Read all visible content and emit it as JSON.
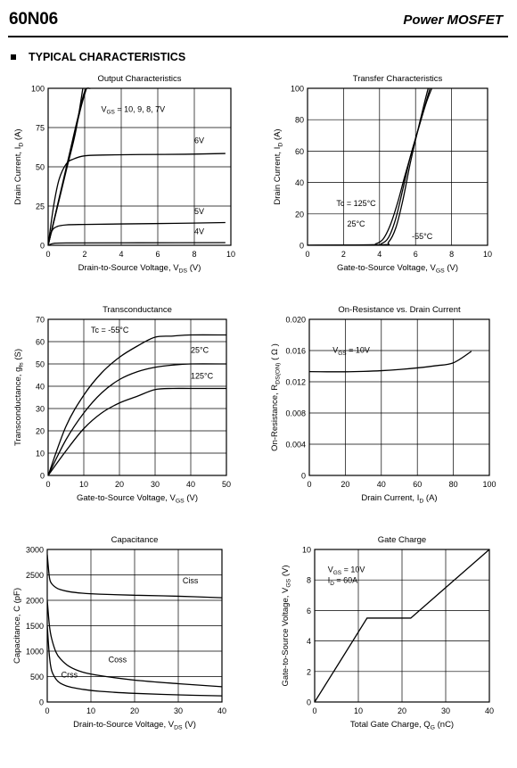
{
  "header": {
    "part_number": "60N06",
    "device_type": "Power MOSFET"
  },
  "section_title": "TYPICAL CHARACTERISTICS",
  "chart_data": [
    {
      "id": "output",
      "type": "line",
      "title": "Output Characteristics",
      "ylabel": "Drain Current, I_D (A)",
      "xlabel": "Drain-to-Source Voltage, V_DS (V)",
      "xlim": [
        0,
        10
      ],
      "ylim": [
        0,
        100
      ],
      "xticks": [
        0,
        2,
        4,
        6,
        8,
        10
      ],
      "yticks": [
        0,
        25,
        50,
        75,
        100
      ],
      "grid": true,
      "series": [
        {
          "name": "V_GS = 10, 9, 8, 7V (a)",
          "x": [
            0,
            0.4,
            0.8,
            1.2,
            1.6,
            2.0,
            2.3
          ],
          "y": [
            0,
            20,
            40,
            60,
            80,
            98,
            100
          ]
        },
        {
          "name": "V_GS = 10, 9, 8, 7V (b)",
          "x": [
            0,
            0.45,
            0.9,
            1.35,
            1.8,
            2.1
          ],
          "y": [
            0,
            22,
            44,
            66,
            88,
            100
          ]
        },
        {
          "name": "V_GS = 10, 9, 8, 7V (c)",
          "x": [
            0,
            0.5,
            1.0,
            1.5,
            1.9
          ],
          "y": [
            0,
            24,
            48,
            72,
            100
          ]
        },
        {
          "name": "6V",
          "x": [
            0,
            0.3,
            0.6,
            1.0,
            1.4,
            2.0,
            3.0,
            5.0,
            7.5,
            9.7
          ],
          "y": [
            0,
            25,
            42,
            52,
            55,
            57,
            57.5,
            57.8,
            58,
            58.5
          ]
        },
        {
          "name": "5V",
          "x": [
            0,
            0.2,
            0.5,
            1.0,
            2.0,
            4.0,
            7.0,
            9.7
          ],
          "y": [
            0,
            9,
            12,
            13,
            13.3,
            13.6,
            14,
            14.5
          ]
        },
        {
          "name": "4V",
          "x": [
            0,
            0.3,
            1.0,
            5.0,
            9.7
          ],
          "y": [
            0,
            1.2,
            1.5,
            1.6,
            1.7
          ]
        }
      ],
      "annotations": [
        {
          "text": "V_GS = 10, 9, 8, 7V",
          "x": 2.9,
          "y": 85
        },
        {
          "text": "6V",
          "x": 8.0,
          "y": 65
        },
        {
          "text": "5V",
          "x": 8.0,
          "y": 20
        },
        {
          "text": "4V",
          "x": 8.0,
          "y": 7
        }
      ]
    },
    {
      "id": "transfer",
      "type": "line",
      "title": "Transfer Characteristics",
      "ylabel": "Drain Current, I_D (A)",
      "xlabel": "Gate-to-Source Voltage, V_GS (V)",
      "xlim": [
        0,
        10
      ],
      "ylim": [
        0,
        100
      ],
      "xticks": [
        0,
        2,
        4,
        6,
        8,
        10
      ],
      "yticks": [
        0,
        20,
        40,
        60,
        80,
        100
      ],
      "grid": true,
      "series": [
        {
          "name": "Tc=125°C",
          "x": [
            0,
            3.4,
            3.8,
            4.2,
            4.6,
            5.0,
            5.4,
            5.8,
            6.2,
            6.6,
            6.9
          ],
          "y": [
            0,
            0.3,
            1,
            4,
            13,
            27,
            44,
            60,
            76,
            91,
            100
          ]
        },
        {
          "name": "25°C",
          "x": [
            0,
            3.7,
            4.1,
            4.5,
            4.9,
            5.3,
            5.7,
            6.1,
            6.5,
            6.8
          ],
          "y": [
            0,
            0.3,
            1,
            5,
            17,
            36,
            56,
            72,
            88,
            100
          ]
        },
        {
          "name": "-55°C",
          "x": [
            0,
            4.1,
            4.5,
            4.9,
            5.3,
            5.7,
            6.1,
            6.5,
            6.7
          ],
          "y": [
            0,
            0.3,
            2,
            11,
            29,
            52,
            72,
            91,
            100
          ]
        }
      ],
      "annotations": [
        {
          "text": "Tc = 125°C",
          "x": 1.6,
          "y": 25
        },
        {
          "text": "25°C",
          "x": 2.2,
          "y": 12
        },
        {
          "text": "-55°C",
          "x": 5.8,
          "y": 4
        }
      ]
    },
    {
      "id": "transconductance",
      "type": "line",
      "title": "Transconductance",
      "ylabel": "Transconductance, g_fs (S)",
      "xlabel": "Gate-to-Source Voltage, V_GS (V)",
      "xlim": [
        0,
        50
      ],
      "ylim": [
        0,
        70
      ],
      "xticks": [
        0,
        10,
        20,
        30,
        40,
        50
      ],
      "yticks": [
        0,
        10,
        20,
        30,
        40,
        50,
        60,
        70
      ],
      "grid": true,
      "series": [
        {
          "name": "Tc=-55°C",
          "x": [
            0,
            5,
            10,
            15,
            20,
            25,
            30,
            35,
            40,
            50
          ],
          "y": [
            0,
            22,
            36,
            46,
            53,
            58,
            62,
            62.5,
            63,
            63
          ]
        },
        {
          "name": "25°C",
          "x": [
            0,
            5,
            10,
            15,
            20,
            25,
            30,
            35,
            40,
            50
          ],
          "y": [
            0,
            16,
            28,
            37,
            43,
            46.5,
            48.5,
            49.5,
            50,
            50
          ]
        },
        {
          "name": "125°C",
          "x": [
            0,
            5,
            10,
            15,
            20,
            25,
            30,
            35,
            40,
            50
          ],
          "y": [
            0,
            11,
            21,
            28,
            32.5,
            35.5,
            38.5,
            39,
            39,
            39
          ]
        }
      ],
      "annotations": [
        {
          "text": "Tc = -55°C",
          "x": 12,
          "y": 64
        },
        {
          "text": "25°C",
          "x": 40,
          "y": 55
        },
        {
          "text": "125°C",
          "x": 40,
          "y": 43.5
        }
      ]
    },
    {
      "id": "onresistance",
      "type": "line",
      "title": "On-Resistance vs. Drain Current",
      "ylabel": "On-Resistance, R_DS(ON) ( Ω )",
      "xlabel": "Drain Current, I_D (A)",
      "xlim": [
        0,
        100
      ],
      "ylim": [
        0,
        0.02
      ],
      "xticks": [
        0,
        20,
        40,
        60,
        80,
        100
      ],
      "yticks": [
        0,
        0.004,
        0.008,
        0.012,
        0.016,
        0.02
      ],
      "ytick_labels": [
        "0",
        "0.004",
        "0.008",
        "0.012",
        "0.016",
        "0.020"
      ],
      "grid": true,
      "series": [
        {
          "name": "V_GS=10V",
          "x": [
            0,
            10,
            20,
            30,
            40,
            50,
            60,
            70,
            80,
            90
          ],
          "y": [
            0.0133,
            0.01328,
            0.01328,
            0.01333,
            0.01342,
            0.01357,
            0.01378,
            0.01405,
            0.01443,
            0.0159
          ]
        }
      ],
      "annotations": [
        {
          "text": "V_GS = 10V",
          "x": 13,
          "y": 0.0157
        }
      ]
    },
    {
      "id": "capacitance",
      "type": "line",
      "title": "Capacitance",
      "ylabel": "Capacitance, C (pF)",
      "xlabel": "Drain-to-Source Voltage, V_DS (V)",
      "xlim": [
        0,
        40
      ],
      "ylim": [
        0,
        3000
      ],
      "xticks": [
        0,
        10,
        20,
        30,
        40
      ],
      "yticks": [
        0,
        500,
        1000,
        1500,
        2000,
        2500,
        3000
      ],
      "grid": true,
      "series": [
        {
          "name": "Ciss",
          "x": [
            0,
            0.5,
            1,
            2,
            3,
            5,
            8,
            12,
            20,
            30,
            40
          ],
          "y": [
            2900,
            2450,
            2330,
            2250,
            2210,
            2170,
            2140,
            2120,
            2100,
            2080,
            2050
          ]
        },
        {
          "name": "Coss",
          "x": [
            0,
            0.5,
            1,
            2,
            3,
            5,
            8,
            12,
            20,
            30,
            40
          ],
          "y": [
            2000,
            1500,
            1250,
            980,
            850,
            700,
            590,
            520,
            430,
            360,
            300
          ]
        },
        {
          "name": "Crss",
          "x": [
            0,
            0.5,
            1,
            2,
            3,
            5,
            8,
            12,
            20,
            30,
            40
          ],
          "y": [
            1500,
            900,
            620,
            450,
            370,
            300,
            250,
            210,
            170,
            140,
            120
          ]
        }
      ],
      "annotations": [
        {
          "text": "Ciss",
          "x": 31,
          "y": 2330
        },
        {
          "text": "Coss",
          "x": 14,
          "y": 780
        },
        {
          "text": "Crss",
          "x": 3.2,
          "y": 480
        }
      ]
    },
    {
      "id": "gatecharge",
      "type": "line",
      "title": "Gate Charge",
      "ylabel": "Gate-to-Source Voltage, V_GS (V)",
      "xlabel": "Total Gate Charge, Q_G (nC)",
      "xlim": [
        0,
        40
      ],
      "ylim": [
        0,
        10
      ],
      "xticks": [
        0,
        10,
        20,
        30,
        40
      ],
      "yticks": [
        0,
        2,
        4,
        6,
        8,
        10
      ],
      "grid": true,
      "series": [
        {
          "name": "V_GS=10V, I_D=60A",
          "x": [
            0,
            12,
            22,
            40
          ],
          "y": [
            0,
            5.5,
            5.5,
            10
          ]
        }
      ],
      "annotations": [
        {
          "text": "V_GS = 10V",
          "x": 3,
          "y": 8.5
        },
        {
          "text": "I_D = 60A",
          "x": 3,
          "y": 7.8
        }
      ]
    }
  ]
}
